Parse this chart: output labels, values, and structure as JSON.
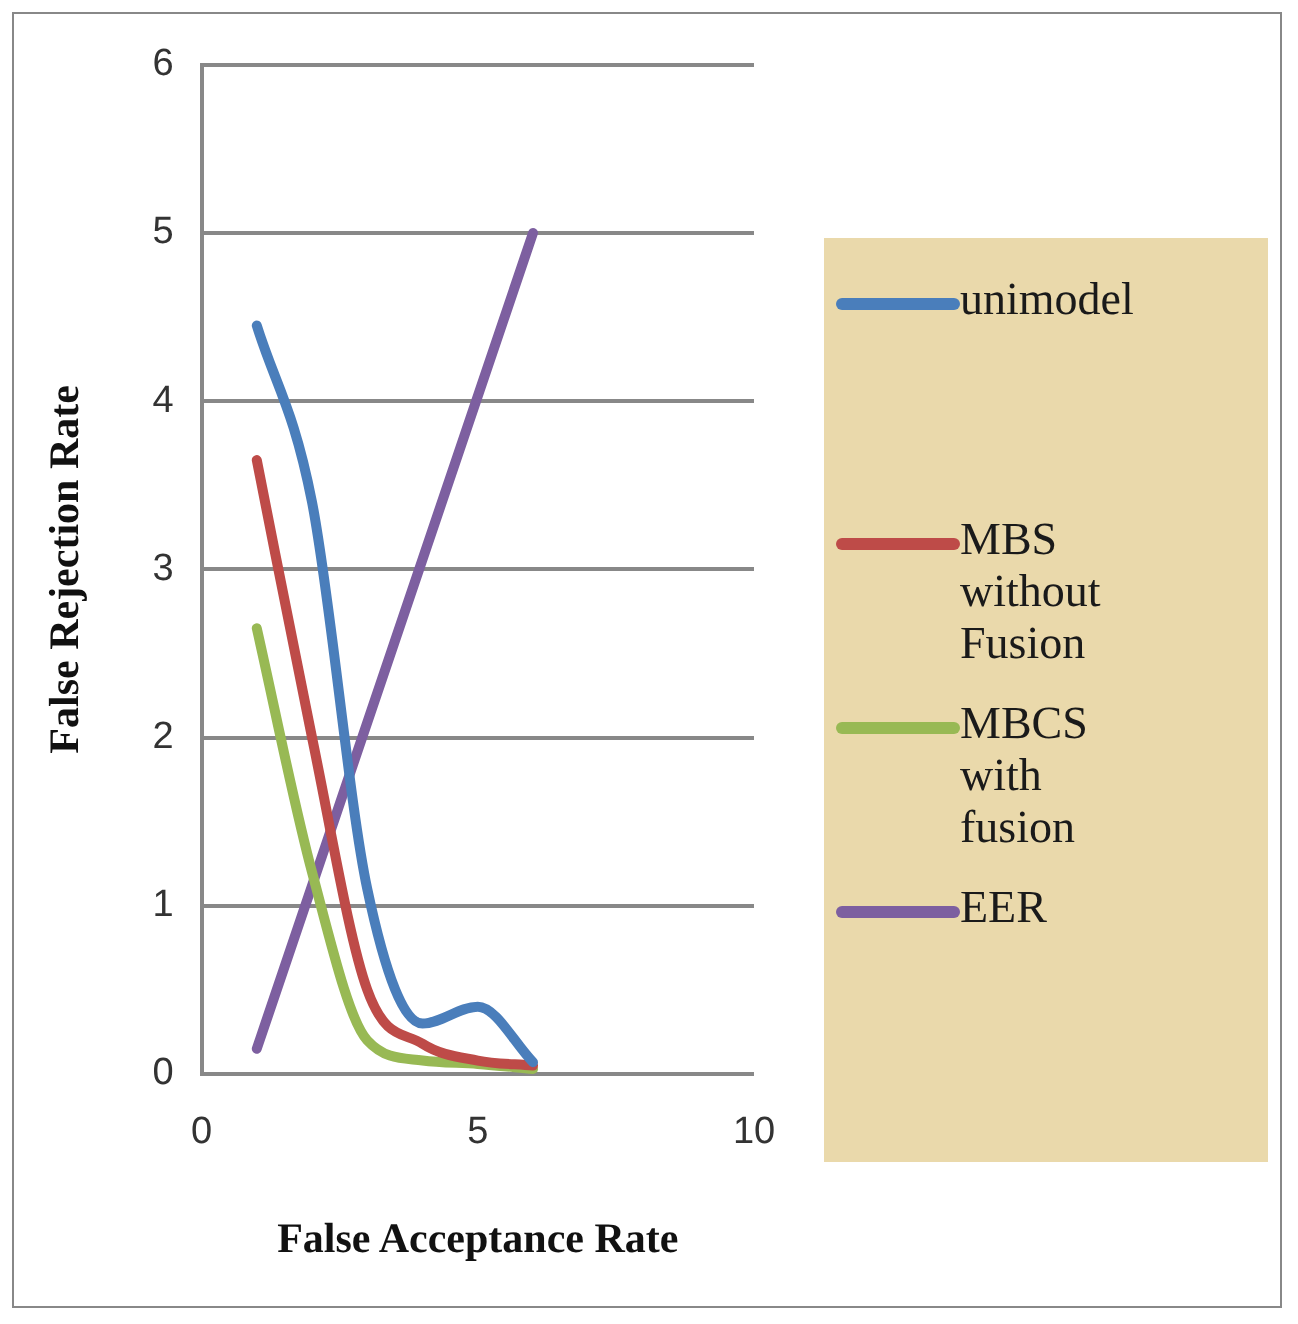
{
  "chart_data": {
    "type": "line",
    "xlabel": "False Acceptance Rate",
    "ylabel": "False Rejection Rate",
    "xlim": [
      0,
      10
    ],
    "xticks": [
      0,
      5,
      10
    ],
    "ylim": [
      0,
      6
    ],
    "yticks": [
      0,
      1,
      2,
      3,
      4,
      5,
      6
    ],
    "grid": "y",
    "legend": "right",
    "marker": "none",
    "line_style": "solid",
    "series": [
      {
        "name": "unimodel",
        "color": "#4a7ebb",
        "x": [
          1,
          2,
          3,
          4,
          5,
          6
        ],
        "values": [
          4.45,
          3.4,
          1.1,
          0.3,
          0.4,
          0.07
        ]
      },
      {
        "name": "MBS without Fusion",
        "color": "#be4b48",
        "x": [
          1,
          2,
          3,
          4,
          5,
          6
        ],
        "values": [
          3.65,
          2.0,
          0.5,
          0.18,
          0.08,
          0.05
        ]
      },
      {
        "name": "MBCS with fusion",
        "color": "#98b954",
        "x": [
          1,
          2,
          3,
          4,
          5,
          6
        ],
        "values": [
          2.65,
          1.2,
          0.2,
          0.08,
          0.06,
          0.03
        ]
      },
      {
        "name": "EER",
        "color": "#7d5fa0",
        "x": [
          1,
          6
        ],
        "values": [
          0.15,
          5.0
        ]
      }
    ]
  }
}
